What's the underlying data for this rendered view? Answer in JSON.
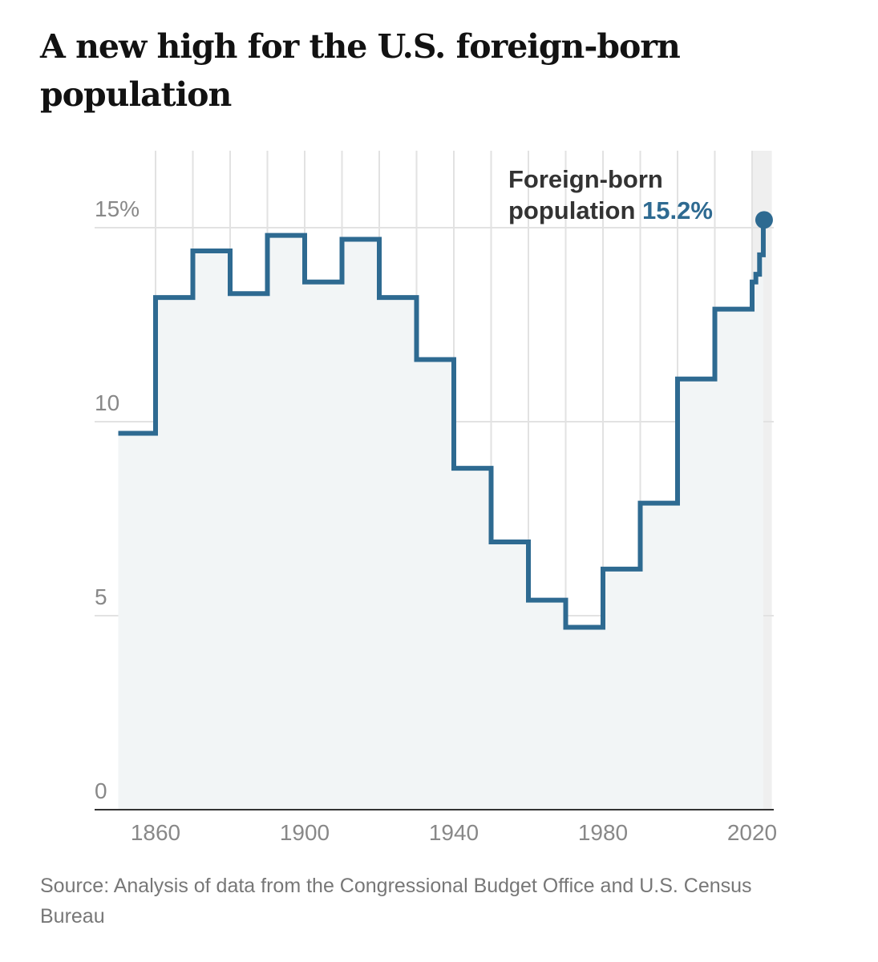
{
  "title": "A new high for the U.S. foreign-born population",
  "source": "Source: Analysis of data from the Congressional Budget Office and U.S. Census Bureau",
  "chart_data": {
    "type": "line",
    "step": "after",
    "title": "A new high for the U.S. foreign-born population",
    "xlabel": "",
    "ylabel": "",
    "x": [
      1850,
      1860,
      1870,
      1880,
      1890,
      1900,
      1910,
      1920,
      1930,
      1940,
      1950,
      1960,
      1970,
      1980,
      1990,
      2000,
      2010,
      2020,
      2021,
      2022,
      2023
    ],
    "series": [
      {
        "values": [
          9.7,
          13.2,
          14.4,
          13.3,
          14.8,
          13.6,
          14.7,
          13.2,
          11.6,
          8.8,
          6.9,
          5.4,
          4.7,
          6.2,
          7.9,
          11.1,
          12.9,
          13.6,
          13.8,
          14.3,
          15.2
        ]
      }
    ],
    "xlim": [
      1850,
      2023
    ],
    "ylim": [
      0,
      15
    ],
    "x_ticks": [
      "1860",
      "1900",
      "1940",
      "1980",
      "2020"
    ],
    "y_ticks": [
      {
        "value": 0,
        "label": "0"
      },
      {
        "value": 5,
        "label": "5"
      },
      {
        "value": 10,
        "label": "10"
      },
      {
        "value": 15,
        "label": "15%"
      }
    ],
    "grid": true,
    "annotation": {
      "line1": "Foreign-born",
      "line2": "population",
      "value": "15.2%"
    },
    "colors": {
      "line": "#2e6a91",
      "area": "#f2f5f6",
      "grid": "#e2e2e2",
      "axis": "#333333",
      "annotation_value": "#2e6a91"
    }
  }
}
